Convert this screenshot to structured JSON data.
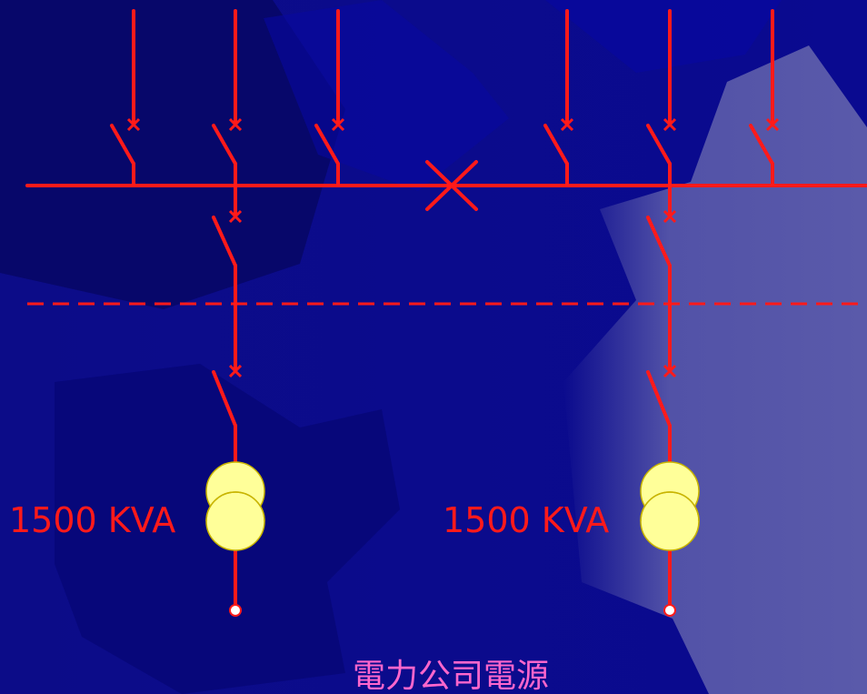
{
  "transformers": [
    {
      "rating": "1500 KVA"
    },
    {
      "rating": "1500 KVA"
    }
  ],
  "caption": "電力公司電源"
}
